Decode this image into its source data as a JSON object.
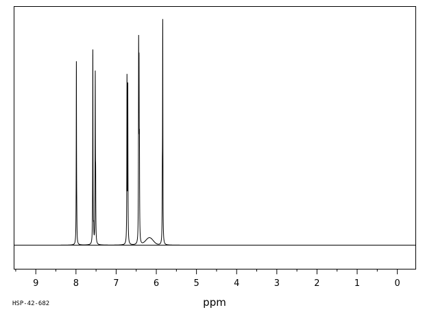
{
  "chart_data": {
    "type": "line",
    "xlabel": "ppm",
    "x_reversed": true,
    "xlim": [
      9.55,
      -0.45
    ],
    "ylim": [
      -0.14,
      1.18
    ],
    "xticks": [
      9,
      8,
      7,
      6,
      5,
      4,
      3,
      2,
      1,
      0
    ],
    "grid": false,
    "legend": "none",
    "peaks": [
      {
        "ppm": 7.99,
        "height": 1.0
      },
      {
        "ppm": 7.98,
        "height": 0.07
      },
      {
        "ppm": 7.58,
        "height": 1.06
      },
      {
        "ppm": 7.56,
        "height": 0.07
      },
      {
        "ppm": 7.52,
        "height": 0.9
      },
      {
        "ppm": 7.51,
        "height": 0.28
      },
      {
        "ppm": 6.73,
        "height": 0.9
      },
      {
        "ppm": 6.71,
        "height": 0.85
      },
      {
        "ppm": 6.44,
        "height": 0.99
      },
      {
        "ppm": 6.43,
        "height": 0.81
      },
      {
        "ppm": 6.42,
        "height": 0.44
      },
      {
        "ppm": 5.84,
        "height": 1.19
      },
      {
        "ppm": 5.85,
        "height": 0.27
      }
    ],
    "broad_peaks": [
      {
        "ppm": 6.17,
        "height": 0.04,
        "width": 0.26
      }
    ]
  },
  "labels": {
    "xlabel": "ppm",
    "code": "HSP-42-682"
  }
}
